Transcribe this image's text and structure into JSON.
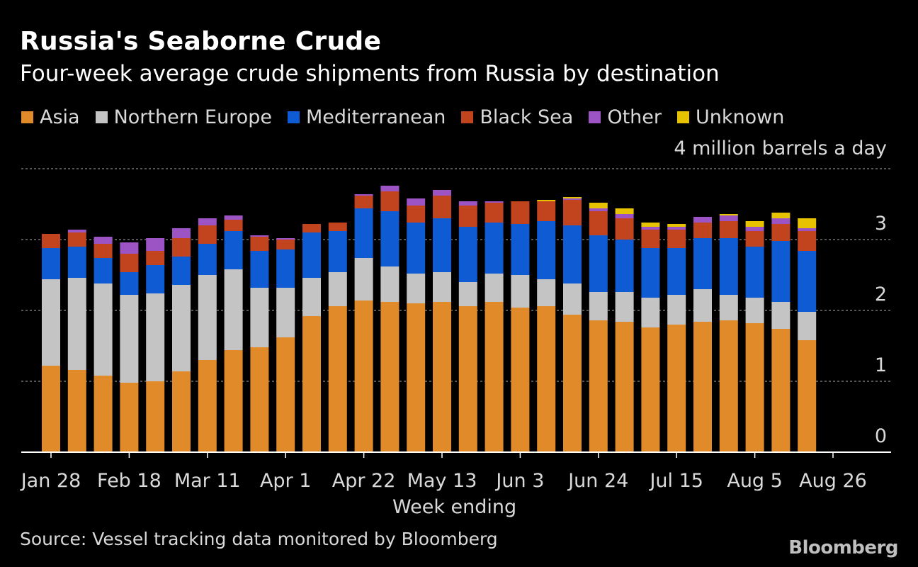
{
  "chart_data": {
    "type": "bar",
    "stacked": true,
    "title": "Russia's Seaborne Crude",
    "subtitle": "Four-week average crude shipments from Russia by destination",
    "unit_label": "4 million barrels a day",
    "xlabel": "Week ending",
    "ylabel": "million barrels a day",
    "ylim": [
      0,
      4
    ],
    "yticks": [
      0,
      1,
      2,
      3
    ],
    "grid": true,
    "legend_position": "top",
    "x_tick_labels": [
      {
        "index": 0,
        "label": "Jan 28"
      },
      {
        "index": 3,
        "label": "Feb 18"
      },
      {
        "index": 6,
        "label": "Mar 11"
      },
      {
        "index": 9,
        "label": "Apr 1"
      },
      {
        "index": 12,
        "label": "Apr 22"
      },
      {
        "index": 15,
        "label": "May 13"
      },
      {
        "index": 18,
        "label": "Jun 3"
      },
      {
        "index": 21,
        "label": "Jun 24"
      },
      {
        "index": 24,
        "label": "Jul 15"
      },
      {
        "index": 27,
        "label": "Aug 5"
      },
      {
        "index": 30,
        "label": "Aug 26"
      }
    ],
    "series": [
      {
        "name": "Asia",
        "color": "#e08a2a",
        "values": [
          1.22,
          1.16,
          1.08,
          0.98,
          1.0,
          1.14,
          1.3,
          1.44,
          1.48,
          1.62,
          1.92,
          2.06,
          2.14,
          2.12,
          2.1,
          2.12,
          2.06,
          2.12,
          2.04,
          2.06,
          1.94,
          1.86,
          1.84,
          1.76,
          1.8,
          1.84,
          1.86,
          1.82,
          1.74,
          1.58
        ]
      },
      {
        "name": "Northern Europe",
        "color": "#c4c4c4",
        "values": [
          1.22,
          1.3,
          1.3,
          1.24,
          1.24,
          1.22,
          1.2,
          1.14,
          0.84,
          0.7,
          0.54,
          0.48,
          0.6,
          0.5,
          0.42,
          0.42,
          0.34,
          0.4,
          0.46,
          0.38,
          0.44,
          0.4,
          0.42,
          0.42,
          0.42,
          0.46,
          0.36,
          0.36,
          0.38,
          0.4
        ]
      },
      {
        "name": "Mediterranean",
        "color": "#0f5bd3",
        "values": [
          0.44,
          0.44,
          0.36,
          0.32,
          0.4,
          0.4,
          0.44,
          0.54,
          0.52,
          0.54,
          0.64,
          0.58,
          0.7,
          0.78,
          0.72,
          0.76,
          0.78,
          0.72,
          0.72,
          0.82,
          0.82,
          0.8,
          0.74,
          0.7,
          0.66,
          0.72,
          0.8,
          0.72,
          0.86,
          0.86
        ]
      },
      {
        "name": "Black Sea",
        "color": "#c1441e",
        "values": [
          0.2,
          0.2,
          0.2,
          0.26,
          0.2,
          0.26,
          0.26,
          0.16,
          0.2,
          0.14,
          0.12,
          0.12,
          0.18,
          0.28,
          0.24,
          0.32,
          0.3,
          0.28,
          0.32,
          0.28,
          0.36,
          0.34,
          0.3,
          0.26,
          0.26,
          0.22,
          0.24,
          0.22,
          0.24,
          0.28
        ]
      },
      {
        "name": "Other",
        "color": "#9c54c4",
        "values": [
          0.0,
          0.04,
          0.1,
          0.16,
          0.18,
          0.14,
          0.1,
          0.06,
          0.02,
          0.02,
          0.0,
          0.0,
          0.02,
          0.08,
          0.1,
          0.08,
          0.06,
          0.02,
          0.0,
          0.0,
          0.02,
          0.04,
          0.06,
          0.04,
          0.04,
          0.08,
          0.08,
          0.06,
          0.08,
          0.04
        ]
      },
      {
        "name": "Unknown",
        "color": "#e6c200",
        "values": [
          0.0,
          0.0,
          0.0,
          0.0,
          0.0,
          0.0,
          0.0,
          0.0,
          0.0,
          0.0,
          0.0,
          0.0,
          0.0,
          0.0,
          0.0,
          0.0,
          0.0,
          0.0,
          0.0,
          0.02,
          0.02,
          0.08,
          0.08,
          0.06,
          0.04,
          0.0,
          0.02,
          0.08,
          0.08,
          0.14
        ]
      }
    ],
    "source": "Source: Vessel tracking data monitored by Bloomberg",
    "brand": "Bloomberg"
  }
}
